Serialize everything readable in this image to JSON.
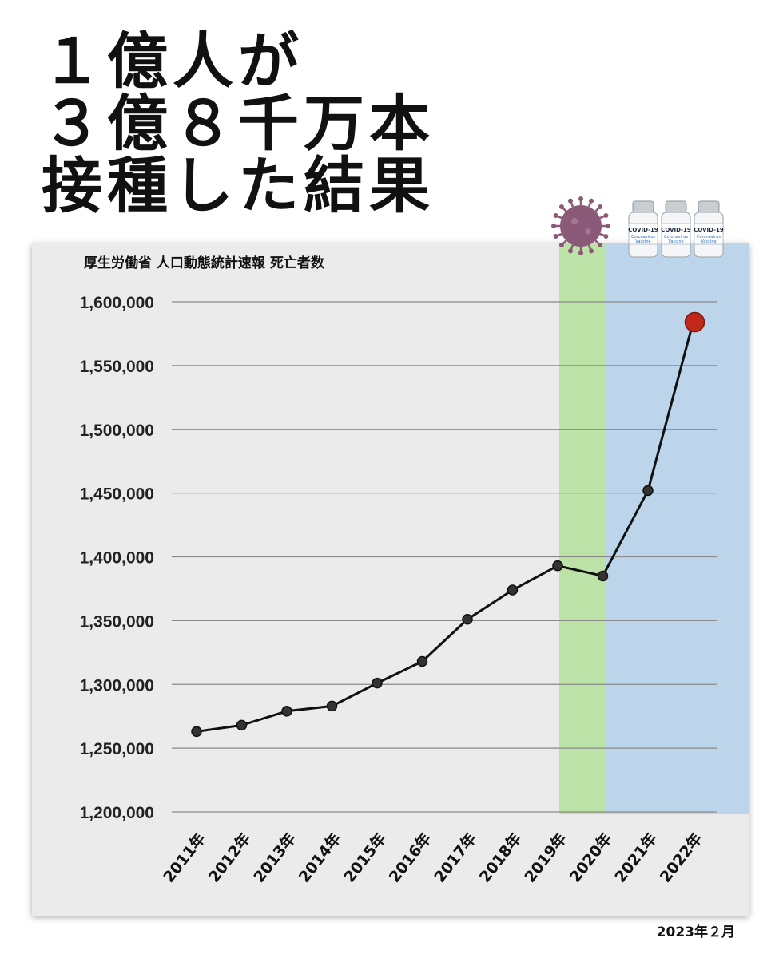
{
  "headline": {
    "line1": "１億人が",
    "line2": "３億８千万本",
    "line3": "接種した結果"
  },
  "date_note": "2023年２月",
  "colors": {
    "covid_band": "#bde2a8",
    "vaccine_band": "#bcd5ea",
    "line": "#111111",
    "last_point": "#c0281b",
    "virus": "#8a5a78"
  },
  "icons": {
    "virus": "coronavirus-icon",
    "vials": "vaccine-vial-icon"
  },
  "vial_label": {
    "brand": "COVID-19",
    "line1": "Coronavirus",
    "line2": "Vaccine"
  },
  "chart_data": {
    "type": "line",
    "title": "厚生労働省 人口動態統計速報 死亡者数",
    "x": [
      "2011年",
      "2012年",
      "2013年",
      "2014年",
      "2015年",
      "2016年",
      "2017年",
      "2018年",
      "2019年",
      "2020年",
      "2021年",
      "2022年"
    ],
    "values": [
      1263000,
      1268000,
      1279000,
      1283000,
      1301000,
      1318000,
      1351000,
      1374000,
      1393000,
      1385000,
      1452000,
      1584000
    ],
    "ylim": [
      1200000,
      1600000
    ],
    "yticks": [
      "1,200,000",
      "1,250,000",
      "1,300,000",
      "1,350,000",
      "1,400,000",
      "1,450,000",
      "1,500,000",
      "1,550,000",
      "1,600,000"
    ],
    "xlabel": "",
    "ylabel": "",
    "grid": true,
    "highlight_bands": [
      {
        "from": "2019年",
        "to": "2020年",
        "color": "green"
      },
      {
        "from": "2020年",
        "to": "2022年",
        "color": "blue"
      }
    ]
  }
}
